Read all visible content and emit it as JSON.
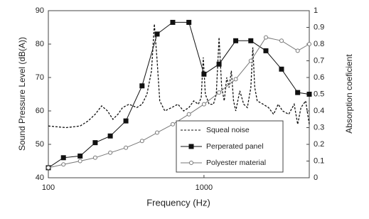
{
  "chart_data": {
    "type": "line",
    "xlabel": "Frequency (Hz)",
    "ylabel": "Sound Pressure Level (dB(A))",
    "y2label": "Absorption coeficient",
    "xscale": "log",
    "xlim": [
      100,
      4750
    ],
    "xticks": [
      100,
      1000
    ],
    "ylim": [
      40,
      90
    ],
    "yticks": [
      40,
      50,
      60,
      70,
      80,
      90
    ],
    "y2lim": [
      0,
      1
    ],
    "y2ticks": [
      0,
      0.1,
      0.2,
      0.3,
      0.4,
      0.5,
      0.6,
      0.7,
      0.8,
      0.9,
      1
    ],
    "legend": "lower right",
    "series": [
      {
        "name": "Squeal noise",
        "color": "#111111",
        "style": "dashed",
        "marker": "none",
        "x": [
          100,
          130,
          160,
          180,
          200,
          220,
          240,
          260,
          280,
          300,
          330,
          370,
          400,
          430,
          460,
          480,
          500,
          520,
          560,
          620,
          680,
          740,
          800,
          860,
          920,
          960,
          990,
          1020,
          1080,
          1150,
          1200,
          1250,
          1300,
          1350,
          1400,
          1450,
          1500,
          1550,
          1600,
          1700,
          1800,
          1900,
          2000,
          2060,
          2120,
          2200,
          2400,
          2600,
          2800,
          3000,
          3200,
          3500,
          3800,
          4000,
          4200,
          4500,
          4750
        ],
        "values": [
          55.5,
          55,
          55.5,
          57,
          59,
          61.5,
          60,
          57.5,
          59,
          61,
          62,
          61,
          62,
          65,
          72,
          86,
          75,
          63,
          60,
          61,
          62,
          60,
          61,
          63,
          62,
          64,
          76,
          65,
          62,
          62,
          65,
          82,
          67,
          63,
          70,
          67,
          72,
          63,
          60,
          66,
          62,
          61,
          67,
          79,
          67,
          63,
          62,
          61,
          59,
          62,
          60,
          59,
          62,
          56,
          61,
          63,
          56
        ]
      },
      {
        "name": "Perperated panel",
        "color": "#111111",
        "style": "solid",
        "marker": "square",
        "axis": "y2",
        "x": [
          100,
          125,
          160,
          200,
          250,
          315,
          400,
          500,
          630,
          800,
          1000,
          1250,
          1600,
          2000,
          2500,
          3150,
          4000,
          4750
        ],
        "values": [
          0.06,
          0.12,
          0.13,
          0.21,
          0.25,
          0.34,
          0.55,
          0.86,
          0.93,
          0.93,
          0.62,
          0.68,
          0.82,
          0.82,
          0.76,
          0.65,
          0.51,
          0.5
        ]
      },
      {
        "name": "Polyester material",
        "color": "#777777",
        "style": "solid",
        "marker": "circle",
        "axis": "y2",
        "x": [
          100,
          125,
          160,
          200,
          250,
          315,
          400,
          500,
          630,
          800,
          1000,
          1250,
          1600,
          2000,
          2500,
          3150,
          4000,
          4750
        ],
        "values": [
          0.06,
          0.08,
          0.1,
          0.12,
          0.15,
          0.18,
          0.22,
          0.27,
          0.32,
          0.38,
          0.44,
          0.51,
          0.59,
          0.7,
          0.84,
          0.82,
          0.76,
          0.8
        ]
      }
    ]
  }
}
